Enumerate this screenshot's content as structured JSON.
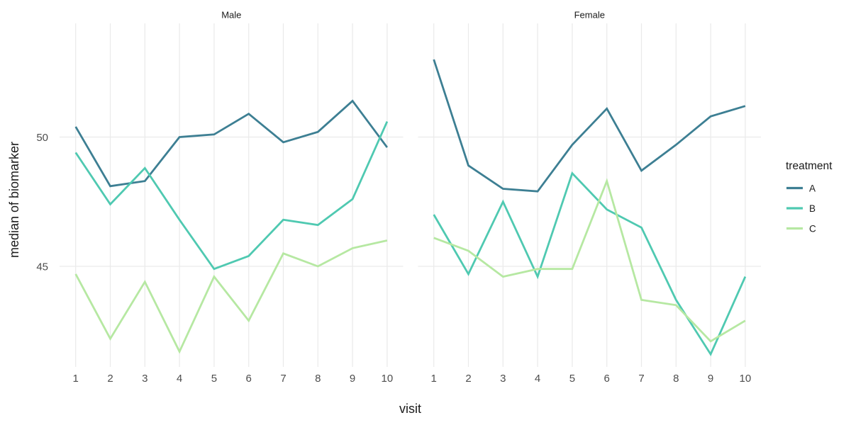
{
  "chart_data": {
    "type": "line",
    "faceted": true,
    "x": [
      1,
      2,
      3,
      4,
      5,
      6,
      7,
      8,
      9,
      10
    ],
    "xlabel": "visit",
    "ylabel": "median of biomarker",
    "yticks": [
      45,
      50
    ],
    "ylim": [
      41,
      54.5
    ],
    "grid": "major gridlines on white background",
    "legend_title": "treatment",
    "legend_position": "right",
    "legend_items": [
      {
        "label": "A",
        "color": "#3d7f93"
      },
      {
        "label": "B",
        "color": "#4fc9b1"
      },
      {
        "label": "C",
        "color": "#b6e8a2"
      }
    ],
    "facets": [
      {
        "label": "Male",
        "series": [
          {
            "name": "A",
            "values": [
              50.4,
              48.1,
              48.3,
              50.0,
              50.1,
              50.9,
              49.8,
              50.2,
              51.4,
              49.6
            ]
          },
          {
            "name": "B",
            "values": [
              49.4,
              47.4,
              48.8,
              46.8,
              44.9,
              45.4,
              46.8,
              46.6,
              47.6,
              50.6
            ]
          },
          {
            "name": "C",
            "values": [
              44.7,
              42.2,
              44.4,
              41.7,
              44.6,
              42.9,
              45.5,
              45.0,
              45.7,
              46.0
            ]
          }
        ]
      },
      {
        "label": "Female",
        "series": [
          {
            "name": "A",
            "values": [
              53.0,
              48.9,
              48.0,
              47.9,
              49.7,
              51.1,
              48.7,
              49.7,
              50.8,
              51.2
            ]
          },
          {
            "name": "B",
            "values": [
              47.0,
              44.7,
              47.5,
              44.6,
              48.6,
              47.2,
              46.5,
              43.7,
              41.6,
              44.6
            ]
          },
          {
            "name": "C",
            "values": [
              46.1,
              45.6,
              44.6,
              44.9,
              44.9,
              48.3,
              43.7,
              43.5,
              42.1,
              42.9
            ]
          }
        ]
      }
    ]
  },
  "colors": {
    "background": "#ffffff",
    "grid": "#eaeaea",
    "tick_label": "#4d4d4d",
    "axis_title": "#1a1a1a",
    "strip_label": "#1a1a1a",
    "legend_text": "#1a1a1a"
  }
}
